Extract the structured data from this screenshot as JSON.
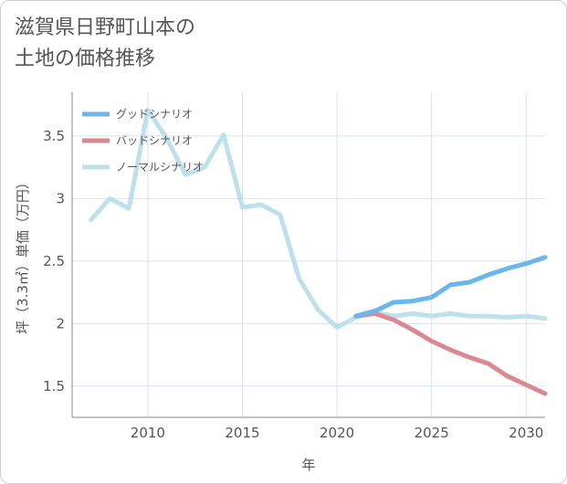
{
  "title": {
    "line1": "滋賀県日野町山本の",
    "line2": "土地の価格推移"
  },
  "chart_data": {
    "type": "line",
    "xlabel": "年",
    "ylabel": "坪（3.3㎡）単価（万円）",
    "xlim": [
      2006,
      2031
    ],
    "ylim": [
      1.25,
      3.85
    ],
    "xticks": [
      2010,
      2015,
      2020,
      2025,
      2030
    ],
    "yticks": [
      1.5,
      2,
      2.5,
      3,
      3.5
    ],
    "ytick_labels": [
      "1.5",
      "2",
      "2.5",
      "3",
      "3.5"
    ],
    "grid": true,
    "legend_position": "top-left",
    "series": [
      {
        "name": "グッドシナリオ",
        "color": "#6cb6ee",
        "x": [
          2021,
          2022,
          2023,
          2024,
          2025,
          2026,
          2027,
          2028,
          2029,
          2030,
          2031
        ],
        "y": [
          2.06,
          2.1,
          2.17,
          2.18,
          2.21,
          2.31,
          2.33,
          2.39,
          2.44,
          2.48,
          2.53
        ]
      },
      {
        "name": "バッドシナリオ",
        "color": "#dc8890",
        "x": [
          2021,
          2022,
          2023,
          2024,
          2025,
          2026,
          2027,
          2028,
          2029,
          2030,
          2031
        ],
        "y": [
          2.06,
          2.08,
          2.03,
          1.95,
          1.86,
          1.79,
          1.73,
          1.68,
          1.58,
          1.51,
          1.44
        ]
      },
      {
        "name": "ノーマルシナリオ",
        "color": "#bde0ec",
        "x": [
          2007,
          2008,
          2009,
          2010,
          2011,
          2012,
          2013,
          2014,
          2015,
          2016,
          2017,
          2018,
          2019,
          2020,
          2021,
          2022,
          2023,
          2024,
          2025,
          2026,
          2027,
          2028,
          2029,
          2030,
          2031
        ],
        "y": [
          2.83,
          3.0,
          2.92,
          3.71,
          3.48,
          3.19,
          3.25,
          3.51,
          2.93,
          2.95,
          2.87,
          2.36,
          2.11,
          1.97,
          2.05,
          2.09,
          2.06,
          2.08,
          2.06,
          2.08,
          2.06,
          2.06,
          2.05,
          2.06,
          2.04
        ]
      }
    ]
  }
}
